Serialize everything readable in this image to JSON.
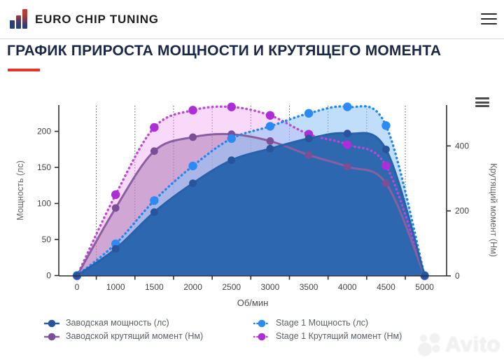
{
  "header": {
    "brand": "EURO CHIP TUNING"
  },
  "page_title": "ГРАФИК ПРИРОСТА МОЩНОСТИ И КРУТЯЩЕГО МОМЕНТА",
  "colors": {
    "accent_red": "#e5352a",
    "title_navy": "#1a2745",
    "axis_text": "#434343",
    "axis_title_text": "#666666",
    "legend_text": "#5b5f66",
    "factory_power_blue": "#2760ab",
    "stage1_power_blue": "#2187f0",
    "factory_torque_purple": "#8a5fa0",
    "stage1_torque_magenta": "#bc46d8"
  },
  "chart_data": {
    "type": "line",
    "x": [
      0,
      1000,
      1500,
      2000,
      2500,
      3000,
      3500,
      4000,
      4500,
      5000
    ],
    "xlabel": "Об/мин",
    "ylabel_left": "Мощность (лс)",
    "ylabel_right": "Крутящий момент (Нм)",
    "yticks_left": [
      0,
      50,
      100,
      150,
      200
    ],
    "yticks_right": [
      0,
      200,
      400
    ],
    "ylim_left": [
      0,
      237
    ],
    "ylim_right": [
      0,
      527
    ],
    "grid": "vertical dotted lines between categories",
    "legend_position": "bottom",
    "series": [
      {
        "name": "Заводская мощность (лс)",
        "axis": "left",
        "line": "solid",
        "color": "#2760ab",
        "marker_color": "#27549b",
        "fill": "rgba(38,99,172,0.95)",
        "values": [
          0,
          37,
          88,
          128,
          160,
          176,
          190,
          197,
          175,
          0
        ]
      },
      {
        "name": "Stage 1 Мощность (лс)",
        "axis": "left",
        "line": "dotted",
        "color": "#2187f0",
        "marker_color": "#2b8bf2",
        "fill": "rgba(140,195,245,0.55)",
        "values": [
          0,
          44,
          104,
          152,
          190,
          207,
          225,
          234,
          208,
          0
        ]
      },
      {
        "name": "Заводской крутящий момент (Нм)",
        "axis": "right",
        "line": "solid",
        "color": "#8a5fa0",
        "marker_color": "#7b4f96",
        "fill": "rgba(165,115,175,0.50)",
        "values": [
          0,
          209,
          384,
          427,
          436,
          415,
          372,
          336,
          285,
          0
        ]
      },
      {
        "name": "Stage 1 Крутящий момент (Нм)",
        "axis": "right",
        "line": "dotted",
        "color": "#bc46d8",
        "marker_color": "#ab2ed6",
        "fill": "rgba(238,165,240,0.42)",
        "values": [
          0,
          250,
          457,
          510,
          520,
          494,
          436,
          404,
          339,
          0
        ]
      }
    ]
  },
  "watermark": {
    "text": "Avito"
  }
}
